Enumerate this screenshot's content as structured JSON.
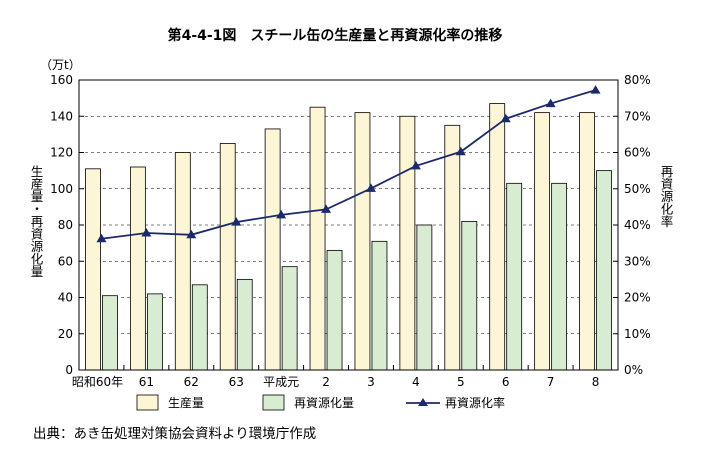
{
  "chart_data": {
    "type": "bar",
    "title": "第4-4-1図　スチール缶の生産量と再資源化率の推移",
    "categories": [
      "昭和60年",
      "61",
      "62",
      "63",
      "平成元",
      "2",
      "3",
      "4",
      "5",
      "6",
      "7",
      "8"
    ],
    "series": [
      {
        "name": "生産量",
        "kind": "bar",
        "axis": "left",
        "color": "#fdf6d6",
        "values": [
          111,
          112,
          120,
          125,
          133,
          145,
          142,
          140,
          135,
          147,
          142,
          142
        ]
      },
      {
        "name": "再資源化量",
        "kind": "bar",
        "axis": "left",
        "color": "#d8ecd2",
        "values": [
          41,
          42,
          47,
          50,
          57,
          66,
          71,
          80,
          82,
          103,
          103,
          110
        ]
      },
      {
        "name": "再資源化率",
        "kind": "line",
        "axis": "right",
        "color": "#1b2a6b",
        "values": [
          36.2,
          37.8,
          37.3,
          40.8,
          42.8,
          44.3,
          50.1,
          56.3,
          60.2,
          69.3,
          73.5,
          77.2
        ]
      }
    ],
    "y_left": {
      "unit": "（万t）",
      "label": "生産量・再資源化量",
      "ylim": [
        0,
        160
      ],
      "ticks": [
        "0",
        "20",
        "40",
        "60",
        "80",
        "100",
        "120",
        "140",
        "160"
      ]
    },
    "y_right": {
      "label": "再資源化率",
      "ylim": [
        0,
        80
      ],
      "ticks": [
        "0%",
        "10%",
        "20%",
        "30%",
        "40%",
        "50%",
        "60%",
        "70%",
        "80%"
      ]
    },
    "grid": "horizontal-dashed",
    "legend": "bottom"
  },
  "source_note": "出典：あき缶処理対策協会資料より環境庁作成"
}
